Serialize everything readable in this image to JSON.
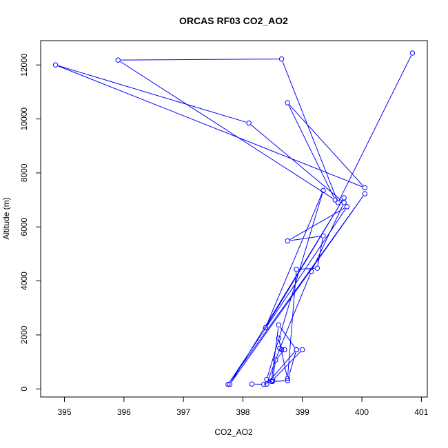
{
  "chart_data": {
    "type": "line",
    "title": "ORCAS RF03 CO2_AO2",
    "xlabel": "CO2_AO2",
    "ylabel": "Altitude (m)",
    "xlim": [
      394.6,
      401.1
    ],
    "ylim": [
      -300,
      12900
    ],
    "xticks": [
      395,
      396,
      397,
      398,
      399,
      400,
      401
    ],
    "yticks": [
      0,
      2000,
      4000,
      6000,
      8000,
      10000,
      12000
    ],
    "grid": false,
    "series_color": "#0000ff",
    "x": [
      398.15,
      398.35,
      398.5,
      398.75,
      398.9,
      399.0,
      398.5,
      398.55,
      398.7,
      398.65,
      398.6,
      398.75,
      398.9,
      399.25,
      399.35,
      398.75,
      399.75,
      397.75,
      400.05,
      397.78,
      399.7,
      398.38,
      399.35,
      398.4,
      398.48,
      398.6,
      398.9,
      398.4,
      398.62,
      399.15,
      399.7,
      398.1,
      394.85,
      400.05,
      398.75,
      399.55,
      395.9,
      398.65,
      399.6,
      400.85
    ],
    "y": [
      180,
      170,
      280,
      300,
      1450,
      1450,
      330,
      1070,
      1450,
      1450,
      1880,
      380,
      4430,
      4470,
      5670,
      5480,
      6750,
      170,
      7230,
      170,
      7080,
      2270,
      7350,
      350,
      280,
      2370,
      1450,
      180,
      1500,
      4350,
      6900,
      9850,
      12000,
      7450,
      10600,
      7000,
      12180,
      12220,
      6900,
      12440
    ]
  }
}
